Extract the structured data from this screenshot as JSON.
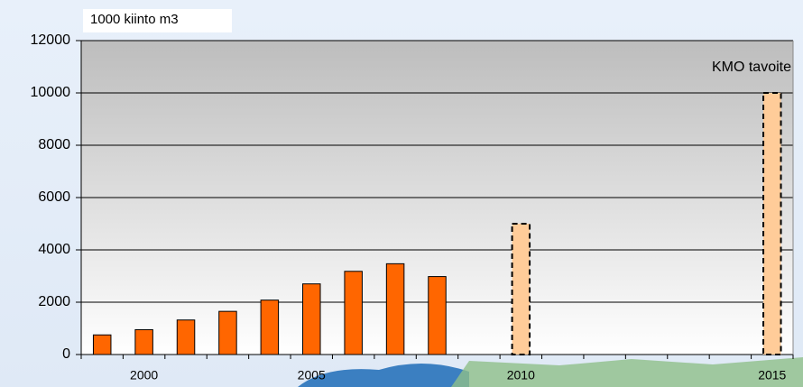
{
  "chart_data": {
    "type": "bar",
    "y_label": "1000 kiinto m3",
    "annotation": "KMO tavoite",
    "categories": [
      null,
      "2000",
      null,
      null,
      null,
      "2005",
      null,
      null,
      null,
      null,
      "2010",
      null,
      null,
      null,
      null,
      "2015"
    ],
    "series": [
      {
        "color": "#ff6600",
        "values": [
          750,
          950,
          1320,
          1650,
          2080,
          2700,
          3180,
          3470,
          2980,
          null,
          null,
          null,
          null,
          null,
          null,
          null
        ]
      },
      {
        "color": "#ffcc99",
        "dashed": true,
        "values": [
          null,
          null,
          null,
          null,
          null,
          null,
          null,
          null,
          null,
          null,
          5000,
          null,
          null,
          null,
          null,
          10000
        ]
      }
    ],
    "ylim": [
      0,
      12000
    ],
    "yticks": [
      0,
      2000,
      4000,
      6000,
      8000,
      10000,
      12000
    ],
    "grid": true
  }
}
